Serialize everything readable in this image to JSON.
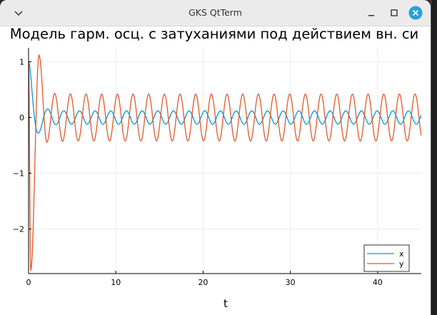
{
  "window": {
    "title": "GKS QtTerm",
    "controls": [
      "chevron-down-icon",
      "minimize-icon",
      "maximize-icon",
      "close-icon"
    ],
    "close_color": "#2aa0d8"
  },
  "chart_data": {
    "type": "line",
    "title": "Модель гарм. осц. с затуханиями под действием вн. си",
    "xlabel": "t",
    "ylabel": "",
    "xlim": [
      0,
      45
    ],
    "ylim": [
      -2.8,
      1.25
    ],
    "xticks": [
      0,
      10,
      20,
      30,
      40
    ],
    "yticks": [
      -2,
      -1,
      0,
      1
    ],
    "grid": true,
    "legend_position": "bottom-right",
    "series": [
      {
        "name": "x",
        "color": "#009ad8",
        "model": {
          "x0": 1.0,
          "v0": 0.0,
          "transient_decay": 1.5,
          "transient_freq": 3.14,
          "steady_amp": 0.12,
          "forcing_freq": 3.5,
          "steady_phase": -1.57
        }
      },
      {
        "name": "y",
        "color": "#e2582a",
        "model": {
          "x0": 1.0,
          "v0": 0.0,
          "transient_decay": 1.5,
          "transient_freq": 3.14,
          "steady_amp": 0.42,
          "forcing_freq": 3.5,
          "steady_phase": -1.57
        },
        "extrema": [
          {
            "t": 0.25,
            "y": -2.75
          },
          {
            "t": 1.2,
            "y": 1.12
          },
          {
            "t": 2.1,
            "y": -0.45
          }
        ]
      }
    ]
  }
}
